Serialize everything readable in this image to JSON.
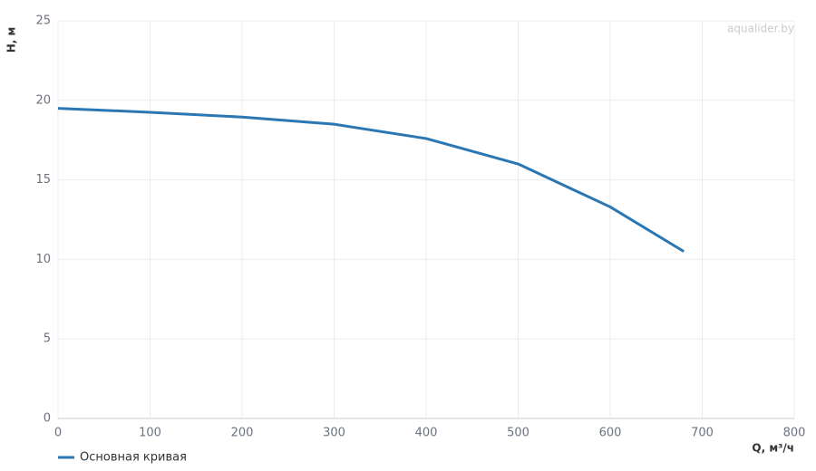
{
  "chart_data": {
    "type": "line",
    "x_label": "Q, м³/ч",
    "y_label": "H, м",
    "watermark": "aqualider.by",
    "x": [
      0,
      100,
      200,
      300,
      400,
      500,
      600,
      680
    ],
    "series": [
      {
        "name": "Основная кривая",
        "color": "#2a77b4",
        "values": [
          19.5,
          19.25,
          18.95,
          18.5,
          17.6,
          16.0,
          13.3,
          10.5
        ]
      }
    ],
    "xlim": [
      0,
      800
    ],
    "xticks": [
      0,
      100,
      200,
      300,
      400,
      500,
      600,
      700,
      800
    ],
    "ylim": [
      0,
      25
    ],
    "yticks": [
      0,
      5,
      10,
      15,
      20,
      25
    ],
    "grid": true
  }
}
